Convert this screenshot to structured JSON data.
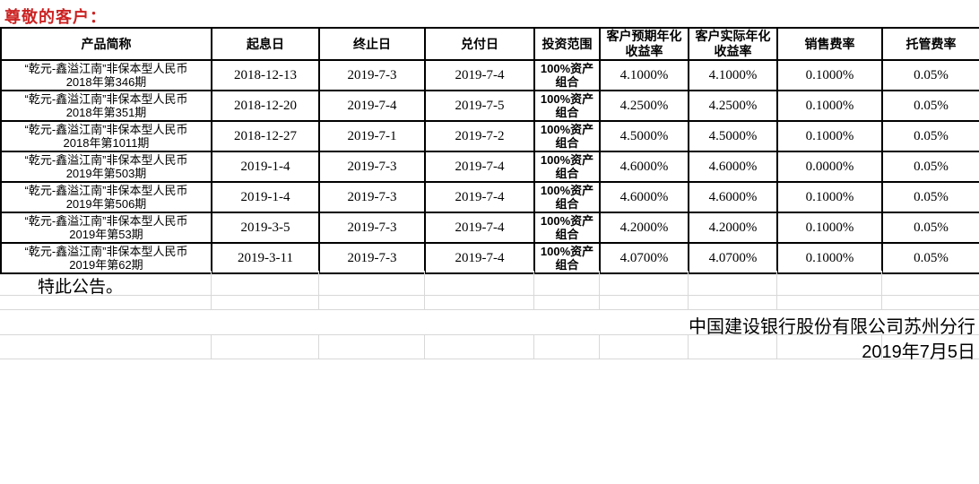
{
  "greeting": "尊敬的客户：",
  "colors": {
    "greeting_text": "#cc2222",
    "table_border": "#000000",
    "gridline": "#d8d8d8"
  },
  "table": {
    "headers": [
      "产品简称",
      "起息日",
      "终止日",
      "兑付日",
      "投资范围",
      "客户预期年化\n收益率",
      "客户实际年化\n收益率",
      "销售费率",
      "托管费率"
    ],
    "rows": [
      {
        "name": "“乾元-鑫溢江南”非保本型人民币\n2018年第346期",
        "start_date": "2018-12-13",
        "end_date": "2019-7-3",
        "pay_date": "2019-7-4",
        "scope": "100%资产\n组合",
        "expected": "4.1000%",
        "actual": "4.1000%",
        "sales_fee": "0.1000%",
        "custody_fee": "0.05%"
      },
      {
        "name": "“乾元-鑫溢江南”非保本型人民币\n2018年第351期",
        "start_date": "2018-12-20",
        "end_date": "2019-7-4",
        "pay_date": "2019-7-5",
        "scope": "100%资产\n组合",
        "expected": "4.2500%",
        "actual": "4.2500%",
        "sales_fee": "0.1000%",
        "custody_fee": "0.05%"
      },
      {
        "name": "“乾元-鑫溢江南”非保本型人民币\n2018年第1011期",
        "start_date": "2018-12-27",
        "end_date": "2019-7-1",
        "pay_date": "2019-7-2",
        "scope": "100%资产\n组合",
        "expected": "4.5000%",
        "actual": "4.5000%",
        "sales_fee": "0.1000%",
        "custody_fee": "0.05%"
      },
      {
        "name": "“乾元-鑫溢江南”非保本型人民币\n2019年第503期",
        "start_date": "2019-1-4",
        "end_date": "2019-7-3",
        "pay_date": "2019-7-4",
        "scope": "100%资产\n组合",
        "expected": "4.6000%",
        "actual": "4.6000%",
        "sales_fee": "0.0000%",
        "custody_fee": "0.05%"
      },
      {
        "name": "“乾元-鑫溢江南”非保本型人民币\n2019年第506期",
        "start_date": "2019-1-4",
        "end_date": "2019-7-3",
        "pay_date": "2019-7-4",
        "scope": "100%资产\n组合",
        "expected": "4.6000%",
        "actual": "4.6000%",
        "sales_fee": "0.1000%",
        "custody_fee": "0.05%"
      },
      {
        "name": "“乾元-鑫溢江南”非保本型人民币\n2019年第53期",
        "start_date": "2019-3-5",
        "end_date": "2019-7-3",
        "pay_date": "2019-7-4",
        "scope": "100%资产\n组合",
        "expected": "4.2000%",
        "actual": "4.2000%",
        "sales_fee": "0.1000%",
        "custody_fee": "0.05%"
      },
      {
        "name": "“乾元-鑫溢江南”非保本型人民币\n2019年第62期",
        "start_date": "2019-3-11",
        "end_date": "2019-7-3",
        "pay_date": "2019-7-4",
        "scope": "100%资产\n组合",
        "expected": "4.0700%",
        "actual": "4.0700%",
        "sales_fee": "0.1000%",
        "custody_fee": "0.05%"
      }
    ]
  },
  "footer": {
    "announcement": "特此公告。",
    "issuer": "中国建设银行股份有限公司苏州分行",
    "date": "2019年7月5日"
  }
}
